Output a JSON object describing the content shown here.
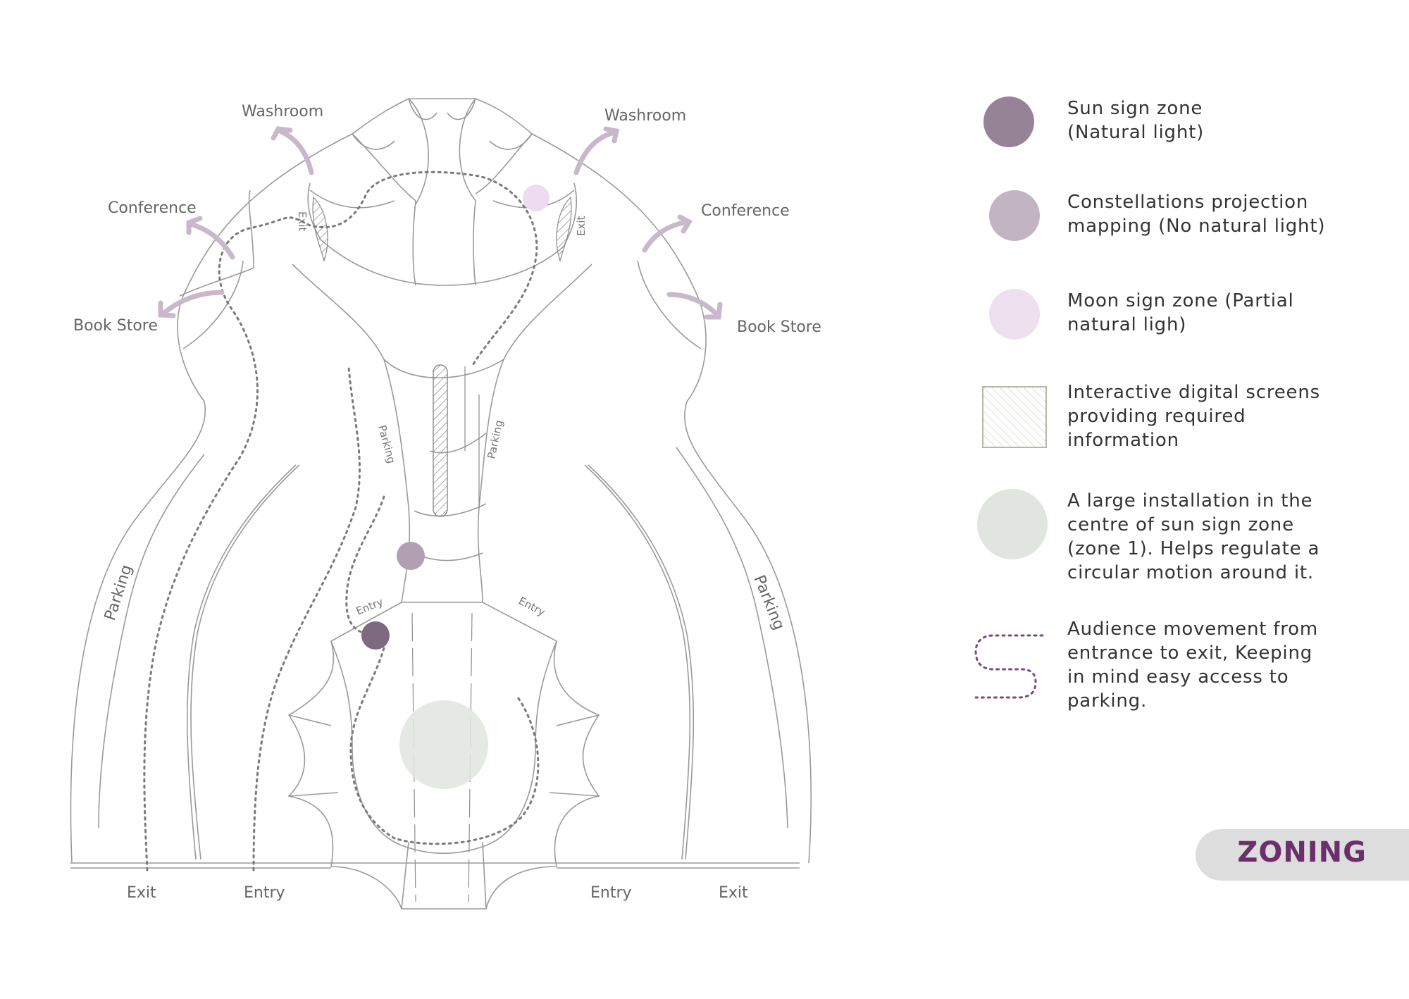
{
  "labels": {
    "washroom_left": "Washroom",
    "washroom_right": "Washroom",
    "conference_left": "Conference",
    "conference_right": "Conference",
    "bookstore_left": "Book Store",
    "bookstore_right": "Book Store",
    "exit_upper_left": "Exit",
    "exit_upper_right": "Exit",
    "parking_inner_left": "Parking",
    "parking_inner_right": "Parking",
    "parking_outer_left": "Parking",
    "parking_outer_right": "Parking",
    "entry_small_left": "Entry",
    "entry_small_right": "Entry",
    "bottom_exit_left": "Exit",
    "bottom_entry_left": "Entry",
    "bottom_entry_right": "Entry",
    "bottom_exit_right": "Exit"
  },
  "legend": [
    {
      "symbol": "sun-sign-dot-icon",
      "color": "#968396",
      "text": "Sun   sign   zone\n(Natural light)"
    },
    {
      "symbol": "constellation-dot-icon",
      "color": "#c3b4c3",
      "text": "Constellations projection\nmapping (No natural light)"
    },
    {
      "symbol": "moon-sign-dot-icon",
      "color": "#efe0ef",
      "text": "Moon sign zone (Partial\nnatural ligh)"
    },
    {
      "symbol": "hatched-screen-icon",
      "color": "#b8b8a8",
      "text": "Interactive digital screens\nproviding required\ninformation"
    },
    {
      "symbol": "installation-dot-icon",
      "color": "#e1e5df",
      "text": "A large installation in the\ncentre of sun sign zone\n(zone 1). Helps regulate a\ncircular motion around it."
    },
    {
      "symbol": "movement-path-icon",
      "color": "#7a4a7a",
      "text": "Audience movement from\nentrance to exit, Keeping\nin mind easy access to\nparking."
    }
  ],
  "badge": {
    "title": "ZONING",
    "color": "#6b2f6b"
  }
}
